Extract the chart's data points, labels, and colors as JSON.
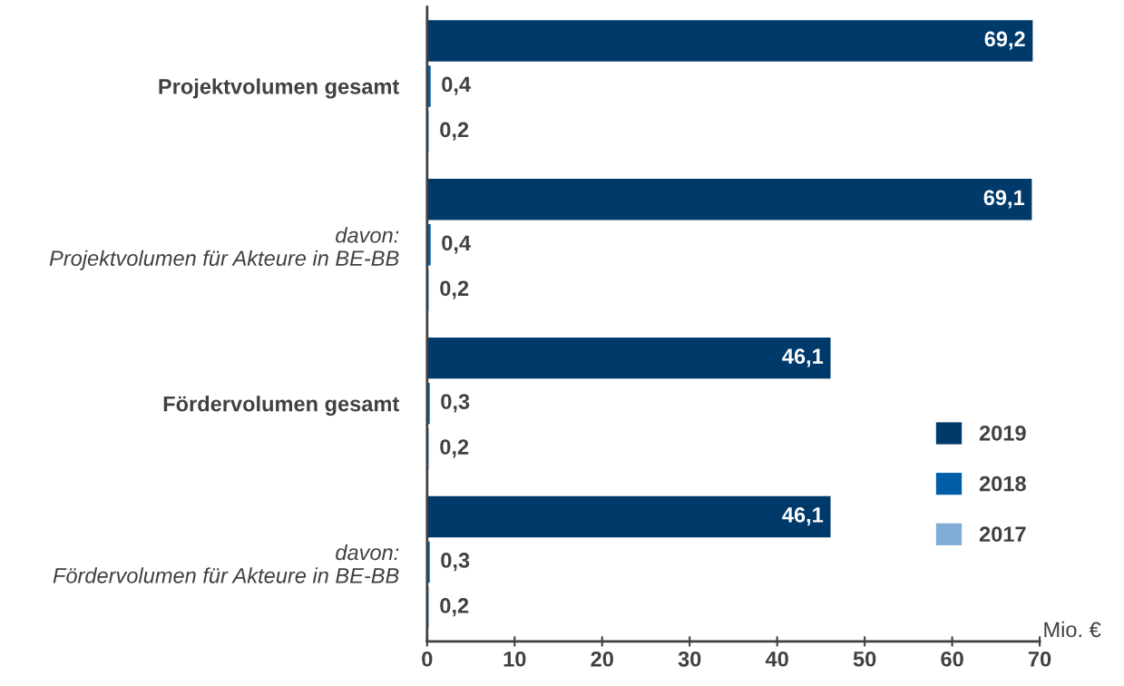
{
  "chart_data": {
    "type": "bar",
    "orientation": "horizontal",
    "categories": [
      "Projektvolumen gesamt",
      "davon:\nProjektvolumen für Akteure in BE-BB",
      "Fördervolumen gesamt",
      "davon:\nFördervolumen für Akteure in BE-BB"
    ],
    "series": [
      {
        "name": "2019",
        "color": "#003a6b",
        "values": [
          69.2,
          69.1,
          46.1,
          46.1
        ],
        "value_labels": [
          "69,2",
          "69,1",
          "46,1",
          "46,1"
        ]
      },
      {
        "name": "2018",
        "color": "#005ea8",
        "values": [
          0.4,
          0.4,
          0.3,
          0.3
        ],
        "value_labels": [
          "0,4",
          "0,4",
          "0,3",
          "0,3"
        ]
      },
      {
        "name": "2017",
        "color": "#7fadd6",
        "values": [
          0.2,
          0.2,
          0.2,
          0.2
        ],
        "value_labels": [
          "0,2",
          "0,2",
          "0,2",
          "0,2"
        ]
      }
    ],
    "xlabel": "Mio. €",
    "xlim": [
      0,
      70
    ],
    "xticks": [
      0,
      10,
      20,
      30,
      40,
      50,
      60,
      70
    ],
    "grid": false,
    "legend": "bottom right"
  }
}
